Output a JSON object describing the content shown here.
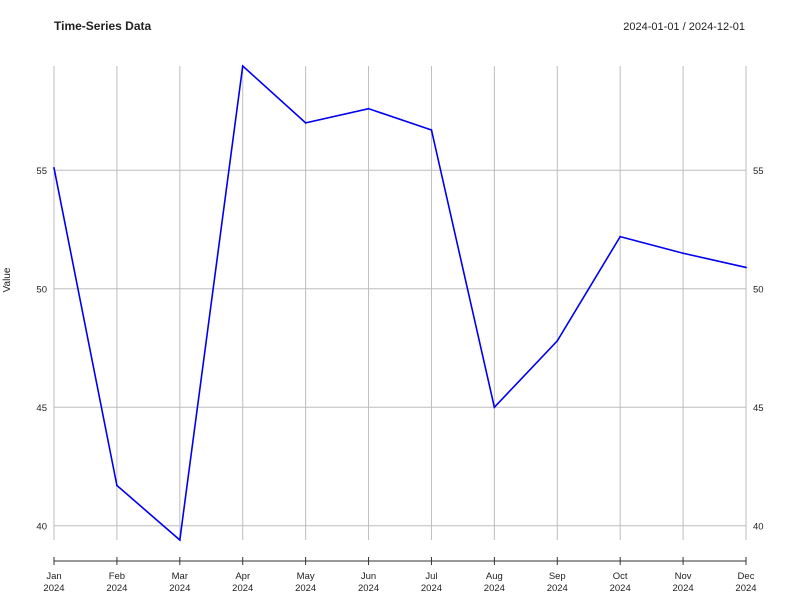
{
  "chart_data": {
    "type": "line",
    "title": "Time-Series Data",
    "date_range": "2024-01-01 / 2024-12-01",
    "ylabel": "Value",
    "xlabel": "",
    "ylim": [
      39.4,
      59.4
    ],
    "yticks": [
      40,
      45,
      50,
      55
    ],
    "categories": [
      "Jan",
      "Feb",
      "Mar",
      "Apr",
      "May",
      "Jun",
      "Jul",
      "Aug",
      "Sep",
      "Oct",
      "Nov",
      "Dec"
    ],
    "category_years": [
      "2024",
      "2024",
      "2024",
      "2024",
      "2024",
      "2024",
      "2024",
      "2024",
      "2024",
      "2024",
      "2024",
      "2024"
    ],
    "x": [
      "2024-01-01",
      "2024-02-01",
      "2024-03-01",
      "2024-04-01",
      "2024-05-01",
      "2024-06-01",
      "2024-07-01",
      "2024-08-01",
      "2024-09-01",
      "2024-10-01",
      "2024-11-01",
      "2024-12-01"
    ],
    "series": [
      {
        "name": "Value",
        "color": "#0000ee",
        "values": [
          55.1,
          41.7,
          39.4,
          59.4,
          57.0,
          57.6,
          56.7,
          45.0,
          47.8,
          52.2,
          51.5,
          50.9
        ]
      }
    ],
    "grid": true,
    "legend": "none"
  }
}
